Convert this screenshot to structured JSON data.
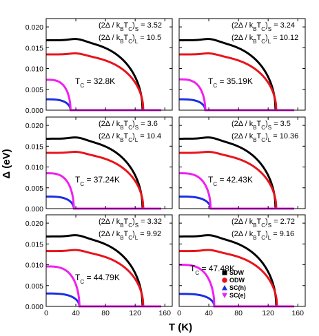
{
  "chart_data": {
    "type": "line",
    "layout": "3 rows x 2 columns of panels",
    "xlabel": "T (K)",
    "ylabel": "Δ (eV)",
    "xlim": [
      0,
      170
    ],
    "ylim": [
      0,
      0.022
    ],
    "x_ticks": [
      "0",
      "40",
      "80",
      "120",
      "160"
    ],
    "y_ticks": [
      "0.000",
      "0.005",
      "0.010",
      "0.015",
      "0.020"
    ],
    "grid": false,
    "legend": {
      "placement": "bottom-right of last panel",
      "entries": [
        {
          "label": "SDW",
          "color": "#000000",
          "marker": "square"
        },
        {
          "label": "ODW",
          "color": "#e8141b",
          "marker": "circle"
        },
        {
          "label": "SC(h)",
          "color": "#1a2fe0",
          "marker": "triangle-up"
        },
        {
          "label": "SC(e)",
          "color": "#f020f0",
          "marker": "triangle-down"
        }
      ]
    },
    "panels": [
      {
        "tc_label": "T",
        "tc_sub": "C",
        "tc_value": " = 32.8K",
        "ratio_s": {
          "pre": "(2Δ / k",
          "s1": "B",
          "mid": "T",
          "s2": "C",
          "post": ")",
          "s3": "S",
          "val": "= 3.52"
        },
        "ratio_l": {
          "pre": "(2Δ / k",
          "s1": "B",
          "mid": "T",
          "s2": "C",
          "post": ")",
          "s3": "L",
          "val": "= 10.5"
        },
        "series": [
          {
            "name": "SDW",
            "color": "#000000",
            "delta0": 0.0168,
            "tc": 130
          },
          {
            "name": "ODW",
            "color": "#e8141b",
            "delta0": 0.0134,
            "tc": 131
          },
          {
            "name": "SC(h)",
            "color": "#1a2fe0",
            "delta0": 0.0026,
            "tc": 32.8
          },
          {
            "name": "SC(e)",
            "color": "#f020f0",
            "delta0": 0.0073,
            "tc": 32.8
          }
        ]
      },
      {
        "tc_label": "T",
        "tc_sub": "C",
        "tc_value": " = 35.19K",
        "ratio_s": {
          "pre": "(2Δ / k",
          "s1": "B",
          "mid": "T",
          "s2": "C",
          "post": ")",
          "s3": "S",
          "val": "= 3.24"
        },
        "ratio_l": {
          "pre": "(2Δ / k",
          "s1": "B",
          "mid": "T",
          "s2": "C",
          "post": ")",
          "s3": "L",
          "val": "= 10.12"
        },
        "series": [
          {
            "name": "SDW",
            "color": "#000000",
            "delta0": 0.0168,
            "tc": 130
          },
          {
            "name": "ODW",
            "color": "#e8141b",
            "delta0": 0.0134,
            "tc": 131
          },
          {
            "name": "SC(h)",
            "color": "#1a2fe0",
            "delta0": 0.0026,
            "tc": 35.19
          },
          {
            "name": "SC(e)",
            "color": "#f020f0",
            "delta0": 0.0074,
            "tc": 35.19
          }
        ]
      },
      {
        "tc_label": "T",
        "tc_sub": "C",
        "tc_value": " = 37.24K",
        "ratio_s": {
          "pre": "(2Δ / k",
          "s1": "B",
          "mid": "T",
          "s2": "C",
          "post": ")",
          "s3": "S",
          "val": "= 3.6"
        },
        "ratio_l": {
          "pre": "(2Δ / k",
          "s1": "B",
          "mid": "T",
          "s2": "C",
          "post": ")",
          "s3": "L",
          "val": "= 10.4"
        },
        "series": [
          {
            "name": "SDW",
            "color": "#000000",
            "delta0": 0.0168,
            "tc": 130
          },
          {
            "name": "ODW",
            "color": "#e8141b",
            "delta0": 0.0134,
            "tc": 131
          },
          {
            "name": "SC(h)",
            "color": "#1a2fe0",
            "delta0": 0.0029,
            "tc": 37.24
          },
          {
            "name": "SC(e)",
            "color": "#f020f0",
            "delta0": 0.0085,
            "tc": 37.24
          }
        ]
      },
      {
        "tc_label": "T",
        "tc_sub": "C",
        "tc_value": " = 42.43K",
        "ratio_s": {
          "pre": "(2Δ / k",
          "s1": "B",
          "mid": "T",
          "s2": "C",
          "post": ")",
          "s3": "S",
          "val": "= 3.5"
        },
        "ratio_l": {
          "pre": "(2Δ / k",
          "s1": "B",
          "mid": "T",
          "s2": "C",
          "post": ")",
          "s3": "L",
          "val": "= 10.36"
        },
        "series": [
          {
            "name": "SDW",
            "color": "#000000",
            "delta0": 0.0168,
            "tc": 130
          },
          {
            "name": "ODW",
            "color": "#e8141b",
            "delta0": 0.0134,
            "tc": 131
          },
          {
            "name": "SC(h)",
            "color": "#1a2fe0",
            "delta0": 0.0029,
            "tc": 42.43
          },
          {
            "name": "SC(e)",
            "color": "#f020f0",
            "delta0": 0.0085,
            "tc": 42.43
          }
        ]
      },
      {
        "tc_label": "T",
        "tc_sub": "C",
        "tc_value": " = 44.79K",
        "ratio_s": {
          "pre": "(2Δ / k",
          "s1": "B",
          "mid": "T",
          "s2": "C",
          "post": ")",
          "s3": "S",
          "val": "= 3.32"
        },
        "ratio_l": {
          "pre": "(2Δ / k",
          "s1": "B",
          "mid": "T",
          "s2": "C",
          "post": ")",
          "s3": "L",
          "val": "= 9.92"
        },
        "series": [
          {
            "name": "SDW",
            "color": "#000000",
            "delta0": 0.0168,
            "tc": 130
          },
          {
            "name": "ODW",
            "color": "#e8141b",
            "delta0": 0.0133,
            "tc": 131
          },
          {
            "name": "SC(h)",
            "color": "#1a2fe0",
            "delta0": 0.0031,
            "tc": 44.79
          },
          {
            "name": "SC(e)",
            "color": "#f020f0",
            "delta0": 0.0096,
            "tc": 44.79
          }
        ]
      },
      {
        "tc_label": "T",
        "tc_sub": "C",
        "tc_value": " = 47.48K",
        "ratio_s": {
          "pre": "(2Δ / k",
          "s1": "B",
          "mid": "T",
          "s2": "C",
          "post": ")",
          "s3": "S",
          "val": "= 2.72"
        },
        "ratio_l": {
          "pre": "(2Δ / k",
          "s1": "B",
          "mid": "T",
          "s2": "C",
          "post": ")",
          "s3": "L",
          "val": "= 9.16"
        },
        "series": [
          {
            "name": "SDW",
            "color": "#000000",
            "delta0": 0.0168,
            "tc": 131
          },
          {
            "name": "ODW",
            "color": "#e8141b",
            "delta0": 0.0133,
            "tc": 132
          },
          {
            "name": "SC(h)",
            "color": "#1a2fe0",
            "delta0": 0.003,
            "tc": 47.48
          },
          {
            "name": "SC(e)",
            "color": "#f020f0",
            "delta0": 0.01,
            "tc": 47.48
          }
        ]
      }
    ]
  }
}
